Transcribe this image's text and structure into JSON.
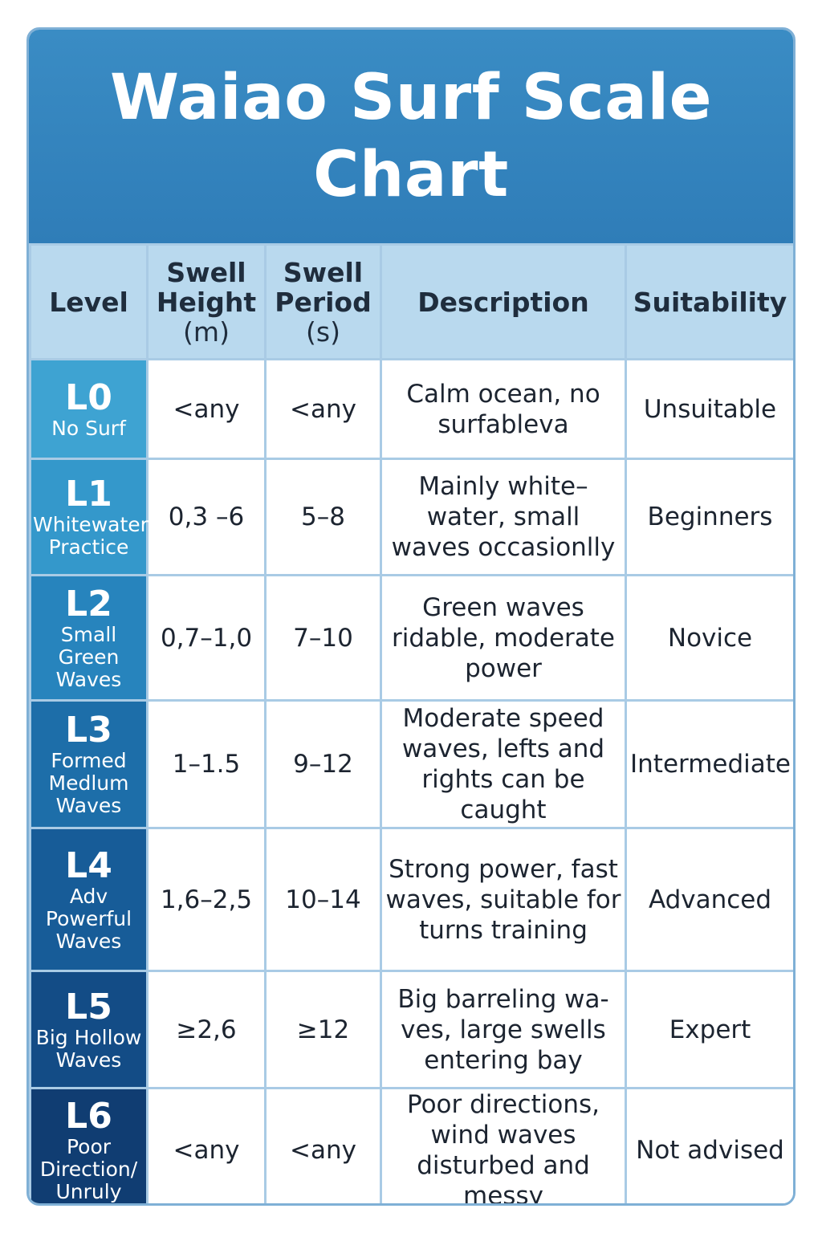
{
  "title": "Waiao Surf Scale Chart",
  "headers": {
    "level": "Level",
    "height": "Swell Height",
    "height_unit": "(m)",
    "period": "Swell Period",
    "period_unit": "(s)",
    "description": "Description",
    "suitability": "Suitability"
  },
  "rows": [
    {
      "code": "L0",
      "name": "No Surf",
      "height": "<any",
      "period": "<any",
      "description": "Calm ocean, no surfableva",
      "suitability": "Unsuitable"
    },
    {
      "code": "L1",
      "name": "Whitewater Practice",
      "height": "0,3 –6",
      "period": "5–8",
      "description": "Mainly white– water, small waves occasionlly",
      "suitability": "Beginners"
    },
    {
      "code": "L2",
      "name": "Small Green Waves",
      "height": "0,7–1,0",
      "period": "7–10",
      "description": "Green waves ridable, moderate power",
      "suitability": "Novice"
    },
    {
      "code": "L3",
      "name": "Formed Medlum Waves",
      "height": "1–1.5",
      "period": "9–12",
      "description": "Moderate speed waves, lefts and rights can be caught",
      "suitability": "Intermediate"
    },
    {
      "code": "L4",
      "name": "Adv Powerful Waves",
      "height": "1,6–2,5",
      "period": "10–14",
      "description": "Strong power, fast waves, suitable for turns training",
      "suitability": "Advanced"
    },
    {
      "code": "L5",
      "name": "Big Hollow Waves",
      "height": "≥2,6",
      "period": "≥12",
      "description": "Big barreling wa- ves, large swells entering bay",
      "suitability": "Expert"
    },
    {
      "code": "L6",
      "name": "Poor Direction/ Unruly",
      "height": "<any",
      "period": "<any",
      "description": "Poor directions, wind waves disturbed and messy",
      "suitability": "Not advised"
    }
  ]
}
